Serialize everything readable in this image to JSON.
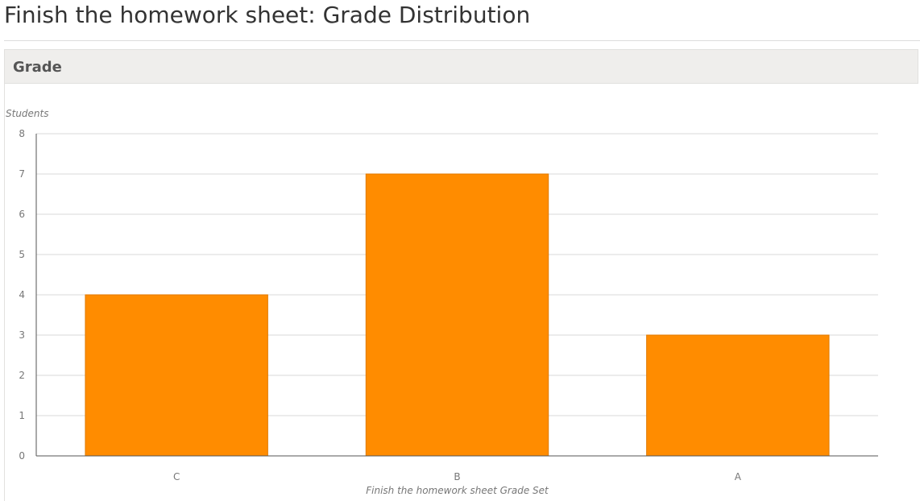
{
  "page": {
    "title": "Finish the homework sheet: Grade Distribution"
  },
  "panel": {
    "header_label": "Grade"
  },
  "colors": {
    "bar_fill": "#ff8c00",
    "bar_stroke": "#e07a00",
    "grid": "#d8d8d8",
    "axis": "#555555"
  },
  "chart_data": {
    "type": "bar",
    "categories": [
      "C",
      "B",
      "A"
    ],
    "values": [
      4,
      7,
      3
    ],
    "title": "",
    "xlabel": "Finish the homework sheet Grade Set",
    "ylabel": "Students",
    "ylim": [
      0,
      8
    ],
    "yticks": [
      0,
      1,
      2,
      3,
      4,
      5,
      6,
      7,
      8
    ],
    "grid": true,
    "legend": false
  }
}
